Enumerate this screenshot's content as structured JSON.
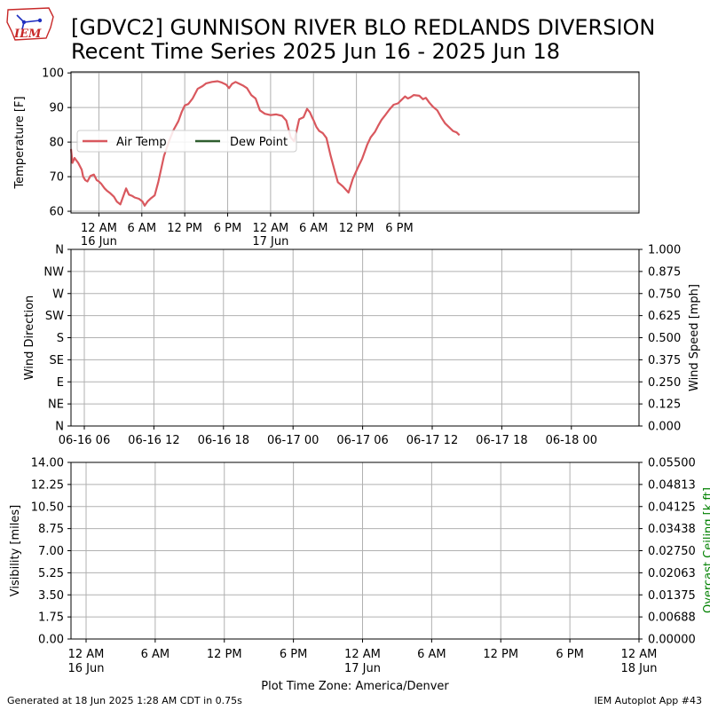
{
  "header": {
    "logo_text": "IEM",
    "title_line1": "[GDVC2] GUNNISON RIVER BLO REDLANDS DIVERSION",
    "title_line2": "Recent Time Series 2025 Jun 16 - 2025 Jun 18"
  },
  "footer": {
    "generated": "Generated at 18 Jun 2025 1:28 AM CDT in 0.75s",
    "app": "IEM Autoplot App #43",
    "timezone": "Plot Time Zone: America/Denver"
  },
  "colors": {
    "air_temp": "#d9585e",
    "dew_point": "#2f5e2f",
    "grid": "#b0b0b0",
    "ceiling_label": "#008000"
  },
  "chart_data": [
    {
      "type": "line",
      "ylabel": "Temperature [F]",
      "ylim": [
        59.5,
        100.3
      ],
      "yticks": [
        60,
        70,
        80,
        90,
        100
      ],
      "xlim": [
        -3.9,
        75.5
      ],
      "xticks": [
        {
          "x": 0,
          "label": "12 AM",
          "sub": "16 Jun"
        },
        {
          "x": 6,
          "label": "6 AM",
          "sub": ""
        },
        {
          "x": 12,
          "label": "12 PM",
          "sub": ""
        },
        {
          "x": 18,
          "label": "6 PM",
          "sub": ""
        },
        {
          "x": 24,
          "label": "12 AM",
          "sub": "17 Jun"
        },
        {
          "x": 30,
          "label": "6 AM",
          "sub": ""
        },
        {
          "x": 36,
          "label": "12 PM",
          "sub": ""
        },
        {
          "x": 42,
          "label": "6 PM",
          "sub": ""
        }
      ],
      "grid": true,
      "legend": {
        "position": "center-left",
        "entries": [
          "Air Temp",
          "Dew Point"
        ]
      },
      "series": [
        {
          "name": "Air Temp",
          "x": [
            -3.9,
            -3.7,
            -3.4,
            -2.9,
            -2.4,
            -2.2,
            -1.9,
            -1.6,
            -1.2,
            -0.7,
            -0.3,
            0.0,
            0.3,
            0.8,
            1.1,
            1.6,
            2.1,
            2.5,
            3.0,
            3.8,
            4.2,
            4.7,
            5.0,
            5.6,
            6.1,
            6.4,
            6.8,
            7.3,
            7.8,
            8.3,
            9.1,
            9.8,
            10.4,
            11.1,
            11.6,
            12.0,
            12.5,
            13.1,
            13.8,
            14.5,
            15.0,
            15.8,
            16.6,
            17.2,
            17.8,
            18.2,
            18.6,
            19.1,
            19.5,
            20.1,
            20.7,
            21.3,
            21.9,
            22.5,
            23.2,
            24.0,
            24.8,
            25.6,
            26.2,
            26.8,
            27.3,
            28.0,
            28.6,
            29.1,
            29.5,
            29.8,
            30.0,
            30.4,
            30.8,
            31.3,
            31.8,
            32.4,
            33.0,
            33.4,
            34.1,
            34.9,
            35.5,
            36.2,
            36.8,
            37.5,
            38.0,
            38.6,
            39.0,
            39.5,
            40.1,
            40.6,
            41.2,
            41.8,
            42.3,
            42.8,
            43.2,
            43.6,
            44.0,
            44.8,
            45.3,
            45.7,
            46.2,
            46.7,
            47.3,
            47.9,
            48.4,
            49.0,
            49.5,
            50.0,
            50.4
          ],
          "y": [
            78,
            74,
            75.4,
            74,
            72,
            70,
            69,
            68.6,
            70.2,
            70.6,
            69,
            68.6,
            68,
            66.6,
            66,
            65.2,
            64.2,
            62.8,
            62,
            66.6,
            64.8,
            64.4,
            64,
            63.6,
            62.8,
            61.6,
            62.8,
            63.8,
            64.6,
            68.4,
            76,
            80.2,
            83.4,
            86,
            88.8,
            90.6,
            91,
            92.6,
            95.4,
            96.2,
            97,
            97.4,
            97.6,
            97.2,
            96.6,
            95.6,
            96.8,
            97.4,
            97,
            96.4,
            95.6,
            93.6,
            92.6,
            89.2,
            88.2,
            87.8,
            88,
            87.6,
            86.2,
            81.4,
            80.2,
            86.6,
            87.2,
            89.6,
            88.6,
            87.2,
            86.4,
            84.4,
            83.2,
            82.6,
            81.2,
            76,
            71.4,
            68.4,
            67.2,
            65.4,
            69.4,
            72.6,
            75.2,
            79.2,
            81.4,
            83,
            84.6,
            86.4,
            88,
            89.4,
            90.8,
            91.2,
            92.2,
            93.2,
            92.6,
            93,
            93.6,
            93.4,
            92.4,
            92.8,
            91.4,
            90.2,
            89.2,
            87,
            85.4,
            84.2,
            83.2,
            82.8,
            82
          ]
        },
        {
          "name": "Dew Point",
          "x": [],
          "y": []
        }
      ]
    },
    {
      "type": "line",
      "ylabel": "Wind Direction",
      "ylabel_right": "Wind Speed [mph]",
      "yticks_left": [
        "N",
        "NE",
        "E",
        "SE",
        "S",
        "SW",
        "W",
        "NW",
        "N"
      ],
      "yticks_right": [
        "0.000",
        "0.125",
        "0.250",
        "0.375",
        "0.500",
        "0.625",
        "0.750",
        "0.875",
        "1.000"
      ],
      "ylim_right": [
        0,
        1
      ],
      "xticks": [
        "06-16 06",
        "06-16 12",
        "06-16 18",
        "06-17 00",
        "06-17 06",
        "06-17 12",
        "06-17 18",
        "06-18 00"
      ],
      "grid": true,
      "series": []
    },
    {
      "type": "line",
      "ylabel": "Visibility [miles]",
      "ylabel_right": "Overcast Ceiling [k ft]",
      "ylim": [
        0,
        14
      ],
      "yticks_left": [
        "0.00",
        "1.75",
        "3.50",
        "5.25",
        "7.00",
        "8.75",
        "10.50",
        "12.25",
        "14.00"
      ],
      "yticks_right": [
        "0.00000",
        "0.00688",
        "0.01375",
        "0.02063",
        "0.02750",
        "0.03438",
        "0.04125",
        "0.04813",
        "0.05500"
      ],
      "ylim_right": [
        0,
        0.055
      ],
      "xticks": [
        {
          "label": "12 AM",
          "sub": "16 Jun"
        },
        {
          "label": "6 AM",
          "sub": ""
        },
        {
          "label": "12 PM",
          "sub": ""
        },
        {
          "label": "6 PM",
          "sub": ""
        },
        {
          "label": "12 AM",
          "sub": "17 Jun"
        },
        {
          "label": "6 AM",
          "sub": ""
        },
        {
          "label": "12 PM",
          "sub": ""
        },
        {
          "label": "6 PM",
          "sub": ""
        },
        {
          "label": "12 AM",
          "sub": "18 Jun"
        }
      ],
      "grid": true,
      "series": []
    }
  ]
}
